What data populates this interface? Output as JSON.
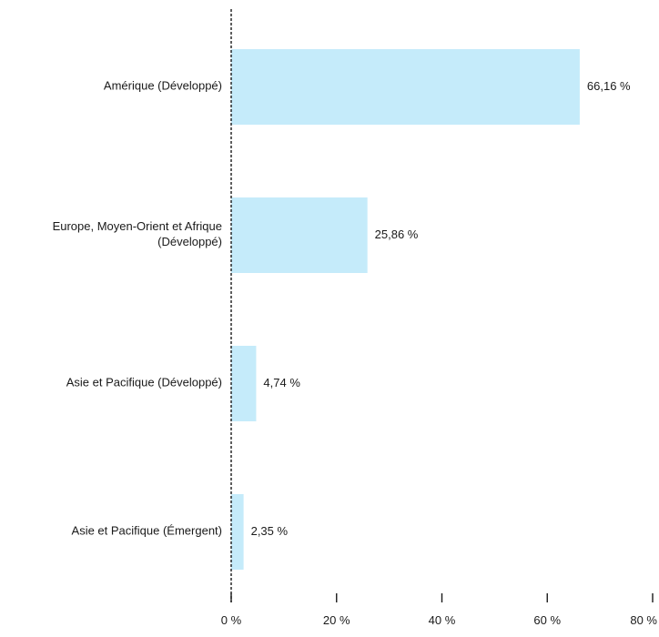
{
  "chart_data": {
    "type": "bar",
    "orientation": "horizontal",
    "categories": [
      "Amérique (Développé)",
      "Europe, Moyen-Orient et Afrique (Développé)",
      "Asie et Pacifique (Développé)",
      "Asie et Pacifique (Émergent)"
    ],
    "category_label_lines": [
      [
        "Amérique (Développé)"
      ],
      [
        "Europe, Moyen-Orient et Afrique",
        "(Développé)"
      ],
      [
        "Asie et Pacifique (Développé)"
      ],
      [
        "Asie et Pacifique (Émergent)"
      ]
    ],
    "values": [
      66.16,
      25.86,
      4.74,
      2.35
    ],
    "data_labels": [
      "66,16 %",
      "25,86 %",
      "4,74 %",
      "2,35 %"
    ],
    "xlim": [
      0,
      80
    ],
    "x_ticks": [
      0,
      20,
      40,
      60,
      80
    ],
    "x_tick_labels": [
      "0 %",
      "20 %",
      "40 %",
      "60 %",
      "80 %"
    ],
    "baseline_style": "dashed",
    "grid": false,
    "legend": "none",
    "title": "",
    "xlabel": "",
    "ylabel": "",
    "bar_color": "#c5ebfa",
    "axis_color": "#1a1a1a"
  }
}
